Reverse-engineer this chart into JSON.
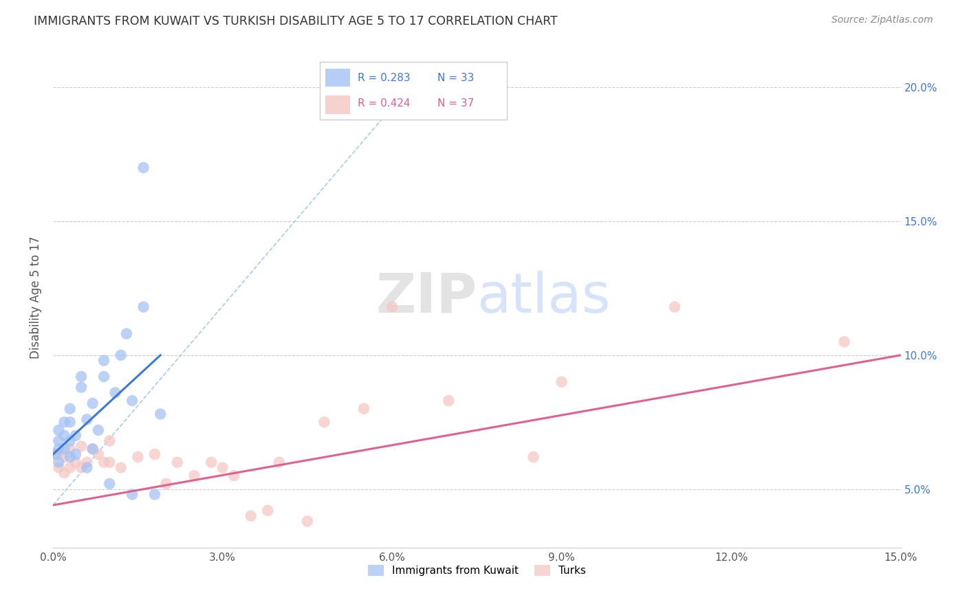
{
  "title": "IMMIGRANTS FROM KUWAIT VS TURKISH DISABILITY AGE 5 TO 17 CORRELATION CHART",
  "source": "Source: ZipAtlas.com",
  "ylabel": "Disability Age 5 to 17",
  "xlim": [
    0.0,
    0.15
  ],
  "ylim": [
    0.028,
    0.215
  ],
  "xticks": [
    0.0,
    0.03,
    0.06,
    0.09,
    0.12,
    0.15
  ],
  "xticklabels": [
    "0.0%",
    "3.0%",
    "6.0%",
    "9.0%",
    "12.0%",
    "15.0%"
  ],
  "yticks": [
    0.05,
    0.1,
    0.15,
    0.2
  ],
  "yticklabels": [
    "5.0%",
    "10.0%",
    "15.0%",
    "20.0%"
  ],
  "legend_labels": [
    "Immigrants from Kuwait",
    "Turks"
  ],
  "kuwait_R": "R = 0.283",
  "kuwait_N": "N = 33",
  "turks_R": "R = 0.424",
  "turks_N": "N = 37",
  "kuwait_color": "#a4c2f4",
  "turks_color": "#f4c7c3",
  "kuwait_line_color": "#3c78d8",
  "turks_line_color": "#e06090",
  "ref_line_color": "#9fc5e8",
  "watermark_zip": "ZIP",
  "watermark_atlas": "atlas",
  "watermark_zip_color": "#cccccc",
  "watermark_atlas_color": "#a4c2f4",
  "background_color": "#ffffff",
  "grid_color": "#cccccc",
  "kuwait_x": [
    0.0005,
    0.001,
    0.001,
    0.001,
    0.001,
    0.002,
    0.002,
    0.002,
    0.003,
    0.003,
    0.003,
    0.003,
    0.004,
    0.004,
    0.005,
    0.005,
    0.006,
    0.006,
    0.007,
    0.007,
    0.008,
    0.009,
    0.009,
    0.01,
    0.011,
    0.012,
    0.013,
    0.014,
    0.014,
    0.016,
    0.016,
    0.018,
    0.019
  ],
  "kuwait_y": [
    0.063,
    0.06,
    0.065,
    0.068,
    0.072,
    0.065,
    0.07,
    0.075,
    0.062,
    0.068,
    0.075,
    0.08,
    0.063,
    0.07,
    0.088,
    0.092,
    0.058,
    0.076,
    0.065,
    0.082,
    0.072,
    0.092,
    0.098,
    0.052,
    0.086,
    0.1,
    0.108,
    0.048,
    0.083,
    0.118,
    0.17,
    0.048,
    0.078
  ],
  "turks_x": [
    0.0005,
    0.001,
    0.001,
    0.002,
    0.002,
    0.003,
    0.003,
    0.004,
    0.005,
    0.005,
    0.006,
    0.007,
    0.008,
    0.009,
    0.01,
    0.01,
    0.012,
    0.015,
    0.018,
    0.02,
    0.022,
    0.025,
    0.028,
    0.03,
    0.032,
    0.035,
    0.038,
    0.04,
    0.045,
    0.048,
    0.055,
    0.06,
    0.07,
    0.085,
    0.09,
    0.11,
    0.14
  ],
  "turks_y": [
    0.063,
    0.058,
    0.063,
    0.056,
    0.062,
    0.058,
    0.065,
    0.06,
    0.058,
    0.066,
    0.06,
    0.065,
    0.063,
    0.06,
    0.06,
    0.068,
    0.058,
    0.062,
    0.063,
    0.052,
    0.06,
    0.055,
    0.06,
    0.058,
    0.055,
    0.04,
    0.042,
    0.06,
    0.038,
    0.075,
    0.08,
    0.118,
    0.083,
    0.062,
    0.09,
    0.118,
    0.105
  ],
  "kuwait_trend_x": [
    0.0,
    0.019
  ],
  "kuwait_trend_y": [
    0.063,
    0.1
  ],
  "turks_trend_x": [
    0.0,
    0.15
  ],
  "turks_trend_y": [
    0.044,
    0.1
  ]
}
